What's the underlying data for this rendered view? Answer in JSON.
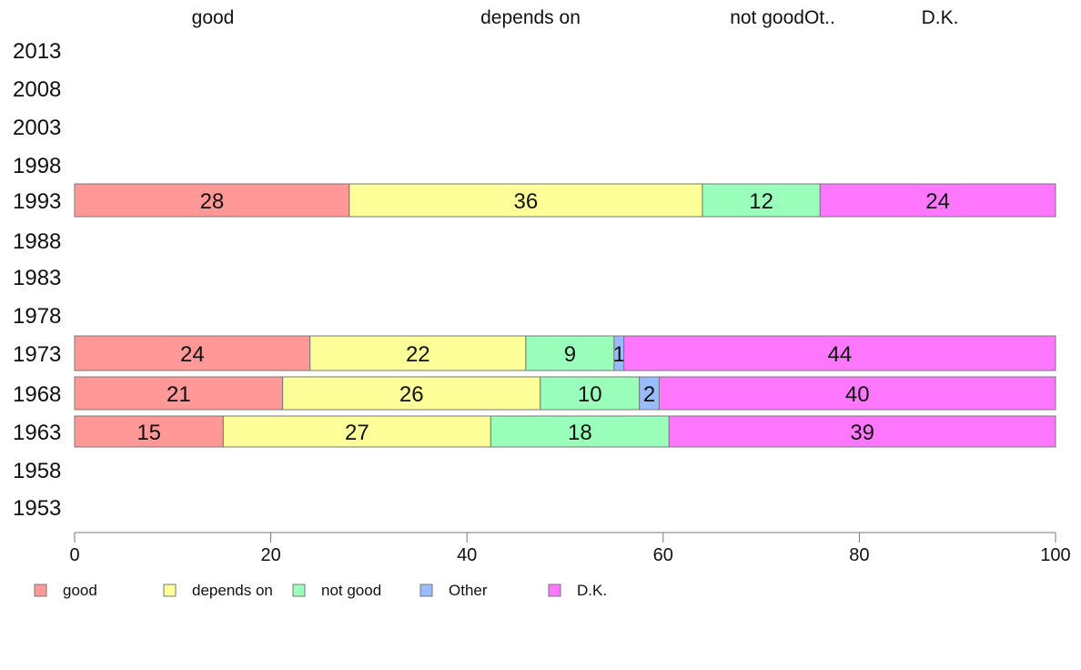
{
  "chart_data": {
    "type": "bar",
    "orientation": "horizontal",
    "stacked": true,
    "title": "",
    "xlabel": "",
    "ylabel": "",
    "xlim": [
      0,
      100
    ],
    "x_ticks": [
      "0",
      "20",
      "40",
      "60",
      "80",
      "100"
    ],
    "top_labels": [
      "good",
      "depends on",
      "not goodOt..",
      "D.K."
    ],
    "categories": [
      "2013",
      "2008",
      "2003",
      "1998",
      "1993",
      "1988",
      "1983",
      "1978",
      "1973",
      "1968",
      "1963",
      "1958",
      "1953"
    ],
    "series": [
      {
        "name": "good",
        "color": "#ff9896",
        "values": [
          null,
          null,
          null,
          null,
          28,
          null,
          null,
          null,
          24,
          21,
          15,
          null,
          null
        ]
      },
      {
        "name": "depends on",
        "color": "#ffff99",
        "values": [
          null,
          null,
          null,
          null,
          36,
          null,
          null,
          null,
          22,
          26,
          27,
          null,
          null
        ]
      },
      {
        "name": "not good",
        "color": "#99ffbb",
        "values": [
          null,
          null,
          null,
          null,
          12,
          null,
          null,
          null,
          9,
          10,
          18,
          null,
          null
        ]
      },
      {
        "name": "Other",
        "color": "#99bbff",
        "values": [
          null,
          null,
          null,
          null,
          0,
          null,
          null,
          null,
          1,
          2,
          0,
          null,
          null
        ]
      },
      {
        "name": "D.K.",
        "color": "#ff77ff",
        "values": [
          null,
          null,
          null,
          null,
          24,
          null,
          null,
          null,
          44,
          40,
          39,
          null,
          null
        ]
      }
    ],
    "legend": {
      "position": "bottom",
      "items": [
        "good",
        "depends on",
        "not good",
        "Other",
        "D.K."
      ]
    },
    "grid": false
  }
}
